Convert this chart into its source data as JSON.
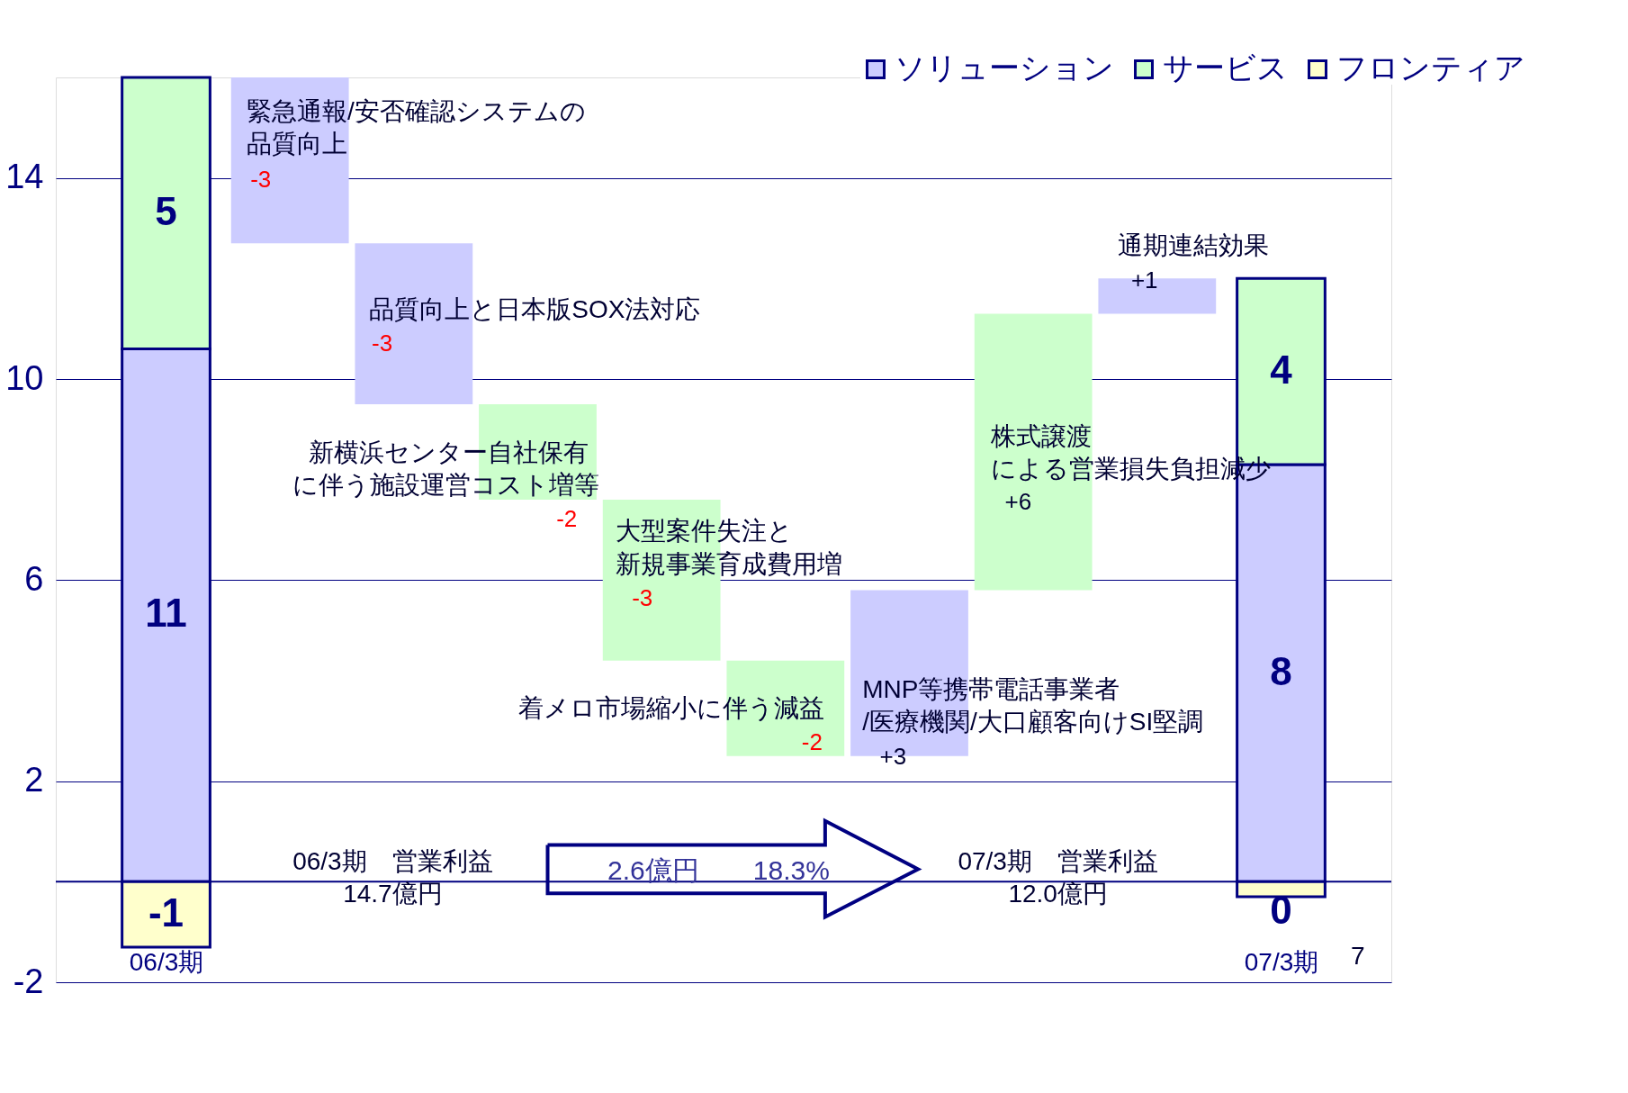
{
  "chart_data": {
    "type": "bar",
    "stacked": true,
    "categories": [
      "06/3期",
      null,
      null,
      null,
      null,
      null,
      null,
      null,
      null,
      "07/3期"
    ],
    "series": [
      {
        "name": "ソリューション",
        "color": "#ccccff",
        "values": [
          10.6,
          -3.3,
          -3.2,
          null,
          null,
          null,
          3.3,
          null,
          0.7,
          8.3
        ],
        "base": [
          null,
          16,
          12.7,
          null,
          null,
          null,
          2.5,
          null,
          11.3,
          null
        ],
        "value_labels": [
          "11",
          "-3",
          "-3",
          null,
          null,
          null,
          "+3",
          null,
          "+1",
          "8"
        ]
      },
      {
        "name": "サービス",
        "color": "#ccffcc",
        "values": [
          5.4,
          null,
          null,
          -1.9,
          -3.2,
          -1.9,
          null,
          5.5,
          null,
          3.7
        ],
        "base": [
          null,
          null,
          null,
          9.5,
          7.6,
          4.4,
          null,
          5.8,
          null,
          null
        ],
        "value_labels": [
          "5",
          null,
          null,
          "-2",
          "-3",
          "-2",
          null,
          "+6",
          null,
          "4"
        ]
      },
      {
        "name": "フロンティア",
        "color": "#ffffcc",
        "values": [
          -1.3,
          null,
          null,
          null,
          null,
          null,
          null,
          null,
          null,
          -0.3
        ],
        "value_labels": [
          "-1",
          null,
          null,
          null,
          null,
          null,
          null,
          null,
          null,
          "0"
        ]
      }
    ],
    "ylim": [
      -2,
      16
    ],
    "yticks": [
      -2,
      2,
      6,
      10,
      14
    ],
    "grid": "y",
    "legend": "top right",
    "ref_lines": [
      {
        "axis": "y",
        "value": 0
      }
    ],
    "annotations": [
      "緊急通報/安否確認システムの",
      "品質向上",
      "品質向上と日本版SOX法対応",
      "新横浜センター自社保有",
      "に伴う施設運営コスト増等",
      "大型案件失注と",
      "新規事業育成費用増",
      "着メロ市場縮小に伴う減益",
      "MNP等携帯電話事業者",
      "/医療機関/大口顧客向けSI堅調",
      "株式譲渡",
      "による営業損失負担減少",
      "通期連結効果",
      "06/3期　営業利益",
      "14.7億円",
      "07/3期　営業利益",
      "12.0億円",
      "2.6億円　　18.3%",
      "7"
    ]
  }
}
